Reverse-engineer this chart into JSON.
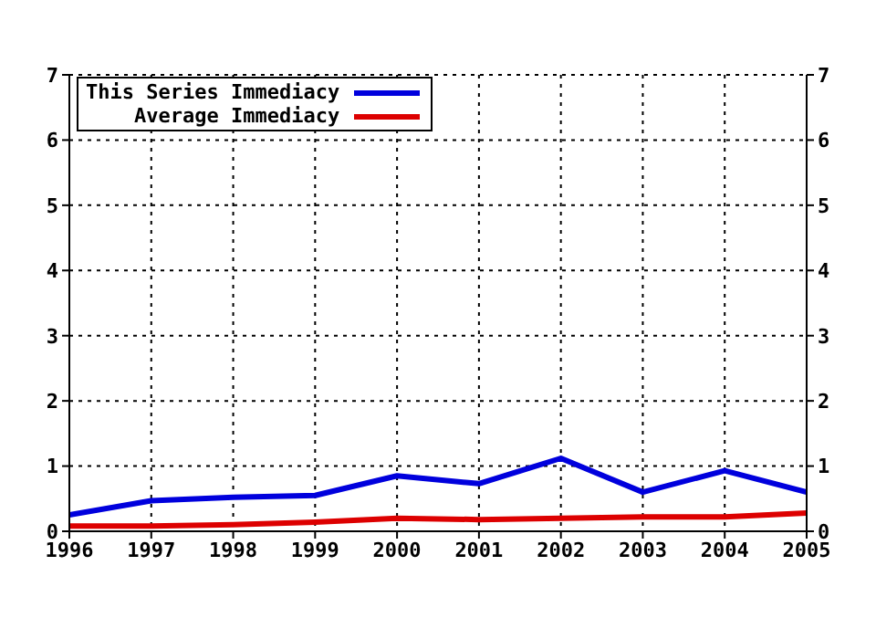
{
  "chart_data": {
    "type": "line",
    "x": [
      1996,
      1997,
      1998,
      1999,
      2000,
      2001,
      2002,
      2003,
      2004,
      2005
    ],
    "series": [
      {
        "name": "This Series Immediacy",
        "color": "#0000dd",
        "values": [
          0.25,
          0.47,
          0.52,
          0.55,
          0.85,
          0.73,
          1.12,
          0.6,
          0.93,
          0.6
        ]
      },
      {
        "name": "Average Immediacy",
        "color": "#dd0000",
        "values": [
          0.08,
          0.08,
          0.1,
          0.14,
          0.2,
          0.18,
          0.2,
          0.22,
          0.22,
          0.28
        ]
      }
    ],
    "xlim": [
      1996,
      2005
    ],
    "xticks": [
      1996,
      1997,
      1998,
      1999,
      2000,
      2001,
      2002,
      2003,
      2004,
      2005
    ],
    "ylim": [
      0,
      7
    ],
    "yticks": [
      0,
      1,
      2,
      3,
      4,
      5,
      6,
      7
    ],
    "y2lim": [
      0,
      7
    ],
    "y2ticks": [
      0,
      1,
      2,
      3,
      4,
      5,
      6,
      7
    ],
    "grid": true,
    "legend": "top left",
    "marker": "none",
    "line_style": "solid"
  }
}
